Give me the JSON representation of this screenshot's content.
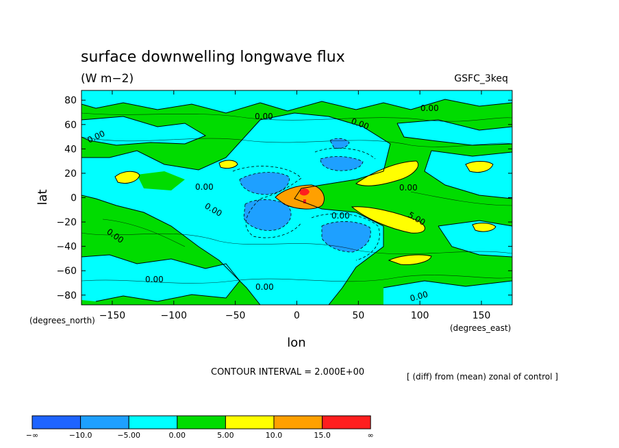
{
  "chart_data": {
    "type": "contour",
    "title": "surface downwelling longwave flux",
    "units": "(W m−2)",
    "model_label": "GSFC_3keq",
    "xlabel": "lon",
    "ylabel": "lat",
    "x_units": "(degrees_east)",
    "y_units": "(degrees_north)",
    "xlim": [
      -175,
      175
    ],
    "ylim": [
      -88,
      88
    ],
    "x_ticks": [
      -150,
      -100,
      -50,
      0,
      50,
      100,
      150
    ],
    "y_ticks": [
      80,
      60,
      40,
      20,
      0,
      -20,
      -40,
      -60,
      -80
    ],
    "x_tick_labels": [
      "−150",
      "−100",
      "−50",
      "0",
      "50",
      "100",
      "150"
    ],
    "y_tick_labels": [
      "80",
      "60",
      "40",
      "20",
      "0",
      "−20",
      "−40",
      "−60",
      "−80"
    ],
    "contour_interval_text": "CONTOUR INTERVAL = 2.000E+00",
    "note": "[ (diff) from (mean) zonal of control ]",
    "contour_labels": [
      "0.00",
      "0.00",
      "0.00",
      "0.00",
      "0.00",
      "0.00",
      "0.00",
      "0.00",
      "0.00",
      "0.00",
      "5.00"
    ],
    "colorbar": {
      "boundaries": [
        "−∞",
        "−10.0",
        "−5.00",
        "0.00",
        "5.00",
        "10.0",
        "15.0",
        "∞"
      ],
      "colors": [
        "#1e64ff",
        "#1ea0ff",
        "#00ffff",
        "#00dc00",
        "#ffff00",
        "#ffa000",
        "#ff1e1e"
      ]
    },
    "regions": [
      {
        "level": "0 to 5",
        "color": "#00dc00",
        "lon": [
          -75,
          -55
        ],
        "lat": [
          60,
          78
        ]
      },
      {
        "level": "0 to 5",
        "color": "#00dc00",
        "lon": [
          -150,
          -115
        ],
        "lat": [
          2,
          28
        ]
      },
      {
        "level": "5 to 10",
        "color": "#ffff00",
        "lon": [
          -145,
          -128
        ],
        "lat": [
          12,
          21
        ]
      },
      {
        "level": "5 to 10",
        "color": "#ffff00",
        "lon": [
          -65,
          -52
        ],
        "lat": [
          23,
          29
        ]
      },
      {
        "level": "5 to 10",
        "color": "#ffff00",
        "lon": [
          48,
          98
        ],
        "lat": [
          7,
          26
        ]
      },
      {
        "level": "5 to 10",
        "color": "#ffff00",
        "lon": [
          45,
          110
        ],
        "lat": [
          -28,
          -7
        ]
      },
      {
        "level": "5 to 10",
        "color": "#ffff00",
        "lon": [
          145,
          165
        ],
        "lat": [
          -28,
          -19
        ]
      },
      {
        "level": "5 to 10",
        "color": "#ffff00",
        "lon": [
          135,
          160
        ],
        "lat": [
          17,
          26
        ]
      },
      {
        "level": "5 to 10",
        "color": "#ffff00",
        "lon": [
          78,
          112
        ],
        "lat": [
          -50,
          -40
        ]
      },
      {
        "level": "10 to 15",
        "color": "#ffa000",
        "lon": [
          -10,
          22
        ],
        "lat": [
          -9,
          9
        ]
      },
      {
        "level": "> 15",
        "color": "#ff1e1e",
        "lon": [
          2,
          10
        ],
        "lat": [
          2,
          8
        ]
      },
      {
        "level": "-5 to -10",
        "color": "#1ea0ff",
        "lon": [
          -45,
          0
        ],
        "lat": [
          -28,
          -6
        ]
      },
      {
        "level": "-5 to -10",
        "color": "#1ea0ff",
        "lon": [
          -50,
          -12
        ],
        "lat": [
          2,
          18
        ]
      },
      {
        "level": "-5 to -10",
        "color": "#1ea0ff",
        "lon": [
          20,
          58
        ],
        "lat": [
          -44,
          -24
        ]
      },
      {
        "level": "-5 to -10",
        "color": "#1ea0ff",
        "lon": [
          20,
          52
        ],
        "lat": [
          20,
          30
        ]
      },
      {
        "level": "-5 to -10",
        "color": "#1ea0ff",
        "lon": [
          25,
          42
        ],
        "lat": [
          35,
          45
        ]
      }
    ]
  }
}
